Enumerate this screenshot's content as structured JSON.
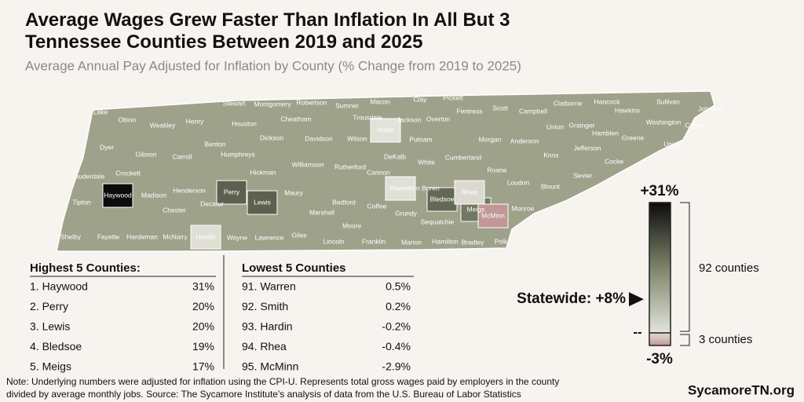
{
  "title": "Average Wages Grew Faster Than Inflation In All But 3 Tennessee Counties Between 2019 and 2025",
  "subtitle": "Average Annual Pay Adjusted for Inflation by County (% Change from 2019 to 2025)",
  "map": {
    "counties": [
      "Lake",
      "Obion",
      "Weakley",
      "Henry",
      "Stewart",
      "Montgomery",
      "Robertson",
      "Sumner",
      "Macon",
      "Clay",
      "Pickett",
      "Scott",
      "Campbell",
      "Claiborne",
      "Hancock",
      "Sullivan",
      "Johnson",
      "Dyer",
      "Gibson",
      "Carroll",
      "Benton",
      "Houston",
      "Cheatham",
      "Trousdale",
      "Smith",
      "Jackson",
      "Overton",
      "Fentress",
      "Union",
      "Hawkins",
      "Washington",
      "Carter",
      "Lauderdale",
      "Crockett",
      "Humphreys",
      "Dickson",
      "Davidson",
      "Wilson",
      "Putnam",
      "Morgan",
      "Anderson",
      "Grainger",
      "Hamblen",
      "Greene",
      "Unicoi",
      "Tipton",
      "Haywood",
      "Madison",
      "Henderson",
      "Decatur",
      "Perry",
      "Hickman",
      "Williamson",
      "Rutherford",
      "DeKalb",
      "White",
      "Cumberland",
      "Knox",
      "Jefferson",
      "Cocke",
      "Roane",
      "Loudon",
      "Blount",
      "Sevier",
      "Shelby",
      "Fayette",
      "Hardeman",
      "Chester",
      "McNairy",
      "Hardin",
      "Wayne",
      "Lewis",
      "Maury",
      "Marshall",
      "Bedford",
      "Cannon",
      "Warren",
      "Van Buren",
      "Coffee",
      "Grundy",
      "Bledsoe",
      "Rhea",
      "Meigs",
      "McMinn",
      "Monroe",
      "Lawrence",
      "Giles",
      "Lincoln",
      "Moore",
      "Franklin",
      "Marion",
      "Sequatchie",
      "Hamilton",
      "Bradley",
      "Polk"
    ]
  },
  "legend": {
    "max": {
      "value": 31,
      "label": "+31%"
    },
    "min": {
      "value": -3,
      "label": "-3%"
    },
    "zero": {
      "value": 0,
      "label": "--"
    },
    "statewide": {
      "value": 8,
      "label": "Statewide: +8%"
    },
    "upper_count_label": "92 counties",
    "lower_count_label": "3 counties"
  },
  "highest": {
    "title": "Highest 5 Counties:",
    "rows": [
      {
        "name": "1. Haywood",
        "value": 31,
        "value_label": "31%"
      },
      {
        "name": "2. Perry",
        "value": 20,
        "value_label": "20%"
      },
      {
        "name": "3. Lewis",
        "value": 20,
        "value_label": "20%"
      },
      {
        "name": "4. Bledsoe",
        "value": 19,
        "value_label": "19%"
      },
      {
        "name": "5. Meigs",
        "value": 17,
        "value_label": "17%"
      }
    ]
  },
  "lowest": {
    "title": "Lowest 5 Counties",
    "rows": [
      {
        "name": "91. Warren",
        "value": 0.5,
        "value_label": "0.5%"
      },
      {
        "name": "92. Smith",
        "value": 0.2,
        "value_label": "0.2%"
      },
      {
        "name": "93. Hardin",
        "value": -0.2,
        "value_label": "-0.2%"
      },
      {
        "name": "94. Rhea",
        "value": -0.4,
        "value_label": "-0.4%"
      },
      {
        "name": "95. McMinn",
        "value": -2.9,
        "value_label": "-2.9%"
      }
    ]
  },
  "note": [
    "Note: Underlying numbers were adjusted for inflation using the CPI-U. Represents total gross wages paid by employers in the county",
    "divided by average monthly jobs. Source: The Sycamore Institute's analysis of data from the U.S. Bureau of Labor Statistics"
  ],
  "brand": "SycamoreTN.org"
}
